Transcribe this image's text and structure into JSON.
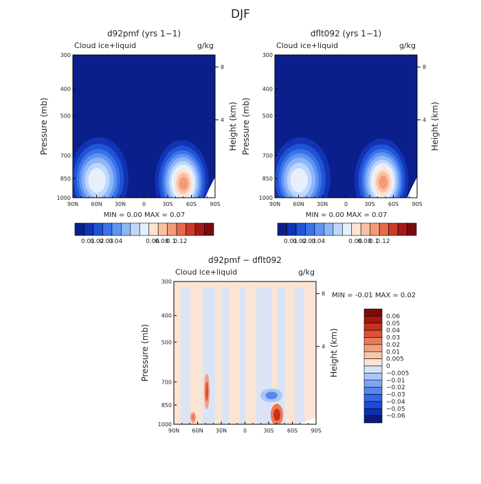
{
  "figure_title": "DJF",
  "colors": {
    "abs_palette": [
      "#0b1f8c",
      "#1133b4",
      "#2153d6",
      "#3a72e8",
      "#5e94f2",
      "#8db5f7",
      "#bdd6fb",
      "#e6f0fd",
      "#fde3d2",
      "#f9c1a3",
      "#f39a78",
      "#e56a4c",
      "#cc3a28",
      "#a6191a",
      "#7a0b0b"
    ],
    "diff_palette": [
      "#0a1a80",
      "#0e2fb0",
      "#1b4bd8",
      "#3468e8",
      "#5687f0",
      "#7ea6f5",
      "#a9c6f8",
      "#d4e4fb",
      "#fbe4d3",
      "#f8c6aa",
      "#f2a07f",
      "#ec7a56",
      "#e05233",
      "#c7301b",
      "#a81510",
      "#7e0a0a"
    ],
    "background_field": "#0b1f8c",
    "diff_background": "#fbe4d3"
  },
  "chart_data": [
    {
      "type": "heatmap",
      "title": "d92pmf (yrs 1−1)",
      "subtitle_left": "Cloud ice+liquid",
      "units": "g/kg",
      "xlabel": "",
      "ylabel": "Pressure (mb)",
      "right_axis_label": "Height (km)",
      "x_ticks": [
        "90N",
        "60N",
        "30N",
        "0",
        "30S",
        "60S",
        "90S"
      ],
      "y_ticks": [
        "300",
        "400",
        "500",
        "700",
        "850",
        "1000"
      ],
      "right_ticks": [
        "8",
        "4"
      ],
      "min_max_text": "MIN =    0.00    MAX =    0.07",
      "colorbar_labels": [
        "0.01",
        "0.02",
        "0.03",
        "0.04",
        "0.06",
        "0.08",
        "0.1",
        "0.12"
      ],
      "features": [
        {
          "lat": 57,
          "p": 850,
          "peak": 0.05,
          "width_lat": 22,
          "width_p": 130
        },
        {
          "lat": -48,
          "p": 870,
          "peak": 0.07,
          "width_lat": 20,
          "width_p": 120
        }
      ]
    },
    {
      "type": "heatmap",
      "title": "dflt092 (yrs 1−1)",
      "subtitle_left": "Cloud ice+liquid",
      "units": "g/kg",
      "xlabel": "",
      "ylabel": "Pressure (mb)",
      "right_axis_label": "Height (km)",
      "x_ticks": [
        "90N",
        "60N",
        "30N",
        "0",
        "30S",
        "60S",
        "90S"
      ],
      "y_ticks": [
        "300",
        "400",
        "500",
        "700",
        "850",
        "1000"
      ],
      "right_ticks": [
        "8",
        "4"
      ],
      "min_max_text": "MIN =    0.00    MAX =    0.07",
      "colorbar_labels": [
        "0.01",
        "0.02",
        "0.03",
        "0.04",
        "0.06",
        "0.08",
        "0.1",
        "0.12"
      ],
      "features": [
        {
          "lat": 57,
          "p": 850,
          "peak": 0.05,
          "width_lat": 22,
          "width_p": 130
        },
        {
          "lat": -45,
          "p": 860,
          "peak": 0.07,
          "width_lat": 20,
          "width_p": 120
        }
      ]
    },
    {
      "type": "heatmap",
      "title": "d92pmf − dflt092",
      "subtitle_left": "Cloud ice+liquid",
      "units": "g/kg",
      "xlabel": "",
      "ylabel": "Pressure (mb)",
      "right_axis_label": "Height (km)",
      "x_ticks": [
        "90N",
        "60N",
        "30N",
        "0",
        "30S",
        "60S",
        "90S"
      ],
      "y_ticks": [
        "300",
        "400",
        "500",
        "700",
        "850",
        "1000"
      ],
      "right_ticks": [
        "8",
        "4"
      ],
      "min_max_text": "MIN =    -0.01    MAX =    0.02",
      "colorbar_labels": [
        "0.06",
        "0.05",
        "0.04",
        "0.03",
        "0.02",
        "0.01",
        "0.005",
        "0",
        "−0.005",
        "−0.01",
        "−0.02",
        "−0.03",
        "−0.04",
        "−0.05",
        "−0.06"
      ],
      "features": [
        {
          "lat": -48,
          "p": 960,
          "value": 0.02
        },
        {
          "lat": 52,
          "p": 860,
          "value": 0.01
        },
        {
          "lat": -30,
          "p": 840,
          "value": -0.01
        }
      ]
    }
  ]
}
